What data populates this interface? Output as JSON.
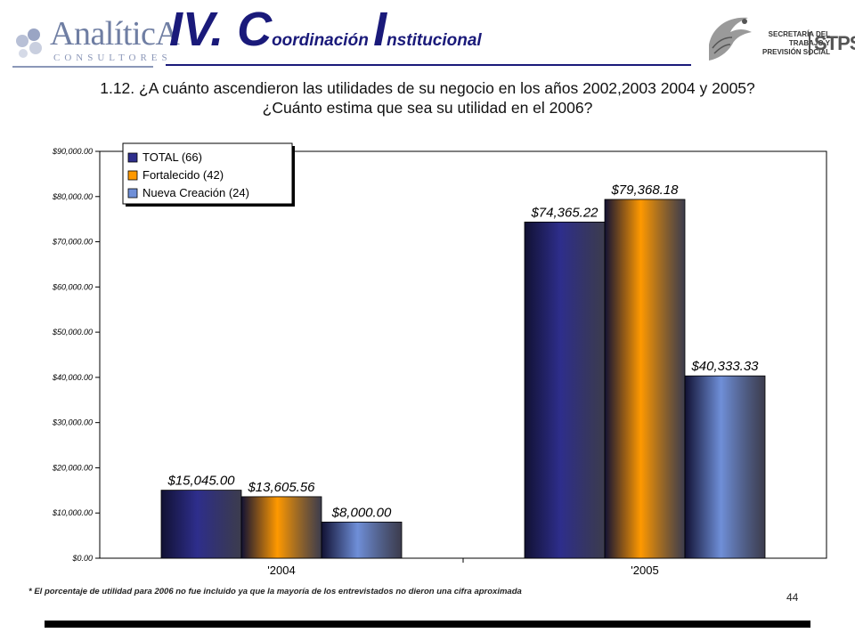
{
  "header": {
    "logo_left": {
      "name": "AnalíticA",
      "subtitle": "CONSULTORES"
    },
    "title_parts": [
      "IV. C",
      "oordinación ",
      "I",
      "nstitucional"
    ],
    "logo_right": {
      "lines": [
        "SECRETARÍA DEL",
        "TRABAJO Y",
        "PREVISIÓN SOCIAL"
      ],
      "acronym": "STPS"
    },
    "accent_color": "#1a1a7a"
  },
  "question": {
    "line1": "1.12. ¿A cuánto ascendieron las  utilidades de su negocio en los años 2002,2003 2004 y 2005?",
    "line2": "¿Cuánto estima que sea su utilidad en el 2006?"
  },
  "chart_data": {
    "type": "bar",
    "categories": [
      "'2004",
      "'2005"
    ],
    "series": [
      {
        "name": "TOTAL (66)",
        "values": [
          15045.0,
          74365.22
        ],
        "labels": [
          "$15,045.00",
          "$74,365.22"
        ],
        "color": "#2e2e8c"
      },
      {
        "name": "Fortalecido (42)",
        "values": [
          13605.56,
          79368.18
        ],
        "labels": [
          "$13,605.56",
          "$79,368.18"
        ],
        "color": "#ff9900"
      },
      {
        "name": "Nueva Creación (24)",
        "values": [
          8000.0,
          40333.33
        ],
        "labels": [
          "$8,000.00",
          "$40,333.33"
        ],
        "color": "#6f8fd8"
      }
    ],
    "ylim": [
      0,
      90000
    ],
    "yticks": [
      {
        "value": 0,
        "label": "$0.00"
      },
      {
        "value": 10000,
        "label": "$10,000.00"
      },
      {
        "value": 20000,
        "label": "$20,000.00"
      },
      {
        "value": 30000,
        "label": "$30,000.00"
      },
      {
        "value": 40000,
        "label": "$40,000.00"
      },
      {
        "value": 50000,
        "label": "$50,000.00"
      },
      {
        "value": 60000,
        "label": "$60,000.00"
      },
      {
        "value": 70000,
        "label": "$70,000.00"
      },
      {
        "value": 80000,
        "label": "$80,000.00"
      },
      {
        "value": 90000,
        "label": "$90,000.00"
      }
    ],
    "grid": false,
    "legend_position": "top-left"
  },
  "footnote": "* El porcentaje de utilidad para 2006 no fue incluido ya que la mayoría de los entrevistados no dieron una cifra aproximada",
  "page_number": "44"
}
